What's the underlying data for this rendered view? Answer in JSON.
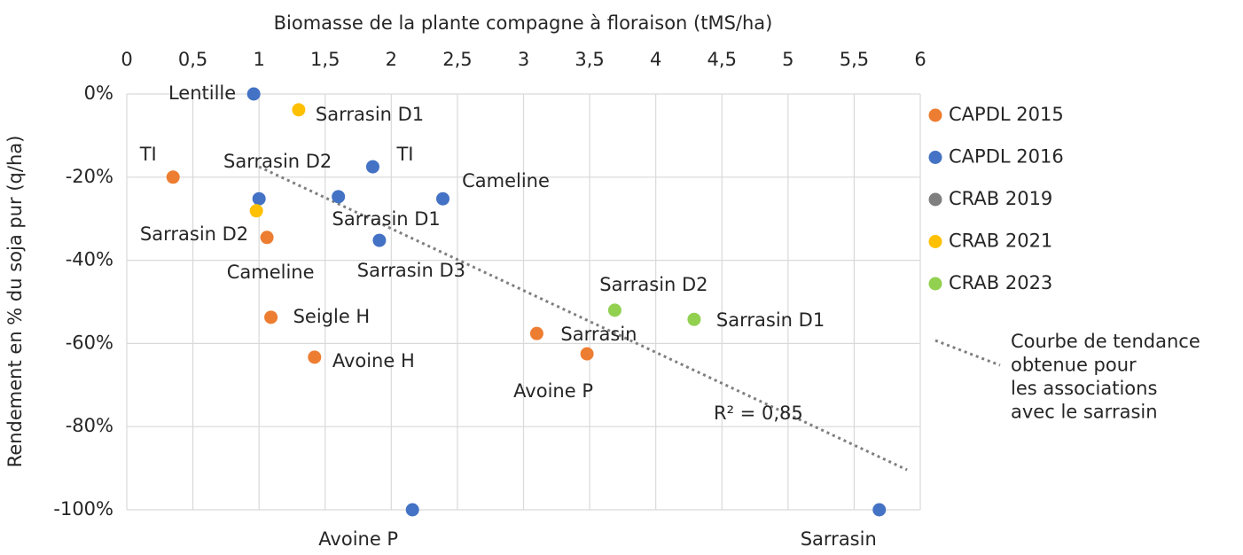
{
  "chart_data": {
    "type": "scatter",
    "x_label": "Biomasse de la plante compagne à floraison (tMS/ha)",
    "y_label": "Rendement en % du soja pur (q/ha)",
    "xlim": [
      0,
      6
    ],
    "xticks": [
      0,
      {
        "value": 0.5,
        "label": "0,5"
      },
      1,
      {
        "value": 1.5,
        "label": "1,5"
      },
      2,
      {
        "value": 2.5,
        "label": "2,5"
      },
      3,
      {
        "value": 3.5,
        "label": "3,5"
      },
      4,
      {
        "value": 4.5,
        "label": "4,5"
      },
      5,
      {
        "value": 5.5,
        "label": "5,5"
      },
      6
    ],
    "ylim": [
      -100,
      0
    ],
    "yticks": [
      {
        "value": 0,
        "label": "0%"
      },
      {
        "value": -20,
        "label": "-20%"
      },
      {
        "value": -40,
        "label": "-40%"
      },
      {
        "value": -60,
        "label": "-60%"
      },
      {
        "value": -80,
        "label": "-80%"
      },
      {
        "value": -100,
        "label": "-100%"
      }
    ],
    "grid": true,
    "legend": "right",
    "series": [
      {
        "name": "CAPDL 2015",
        "color": "#ed7d31",
        "x": [
          0.35,
          1.06,
          1.09,
          1.42,
          3.1,
          3.48
        ],
        "values": [
          -20,
          -34.5,
          -53.7,
          -63.3,
          -57.6,
          -62.5
        ],
        "labels": [
          "TI",
          "Cameline",
          "Seigle H",
          "Avoine H",
          "Sarrasin",
          "Avoine P"
        ]
      },
      {
        "name": "CAPDL 2016",
        "color": "#4472c4",
        "x": [
          0.96,
          1.0,
          1.6,
          1.86,
          1.91,
          2.39,
          2.16,
          5.69
        ],
        "values": [
          0,
          -25.2,
          -24.7,
          -17.5,
          -35.2,
          -25.2,
          -100,
          -100
        ],
        "labels": [
          "Lentille",
          "Sarrasin D2",
          "Sarrasin D1",
          "TI",
          "Sarrasin D3",
          "Cameline",
          "Avoine P",
          "Sarrasin"
        ]
      },
      {
        "name": "CRAB 2019",
        "color": "#7f7f7f",
        "x": [],
        "values": [],
        "labels": []
      },
      {
        "name": "CRAB 2021",
        "color": "#ffc000",
        "x": [
          1.3,
          0.98
        ],
        "values": [
          -3.8,
          -28.1
        ],
        "labels": [
          "Sarrasin D1",
          "Sarrasin D2"
        ]
      },
      {
        "name": "CRAB 2023",
        "color": "#92d050",
        "x": [
          3.69,
          4.29
        ],
        "values": [
          -52,
          -54.2
        ],
        "labels": [
          "Sarrasin D2",
          "Sarrasin D1"
        ]
      }
    ],
    "trendline": {
      "x": [
        1.0,
        5.9
      ],
      "values": [
        -17.5,
        -90.4
      ],
      "color": "#7f7f7f",
      "annotation": "R² = 0,85",
      "legend": [
        "Courbe de tendance",
        "obtenue pour",
        "les associations",
        "avec le sarrasin"
      ]
    }
  }
}
